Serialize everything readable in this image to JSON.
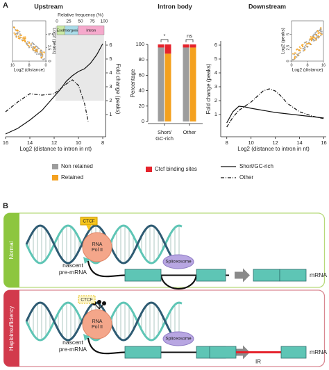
{
  "panel_labels": [
    "A",
    "B"
  ],
  "chart_data": [
    {
      "type": "line",
      "title": "Upstream",
      "x_label": "Log2 (distance to intron in nt)",
      "y_label": "Fold change (peaks)",
      "xlim": [
        16,
        7.75
      ],
      "xticks": [
        16,
        14,
        12,
        10,
        8
      ],
      "ylim": [
        -0.6,
        6.3
      ],
      "yticks": [
        1,
        2,
        3,
        4,
        5,
        6
      ],
      "y_axis_side": "right",
      "highlight_x": [
        11.9,
        7.9
      ],
      "frequency_bar": {
        "title": "Relative frequency (%)",
        "xlim": [
          0,
          100
        ],
        "xticks": [
          0,
          25,
          50,
          75,
          100
        ],
        "segments": [
          {
            "name": "Exon",
            "color": "#c9e8a4",
            "value": 17
          },
          {
            "name": "Intergenic",
            "color": "#a9dbe8",
            "value": 28
          },
          {
            "name": "Intron",
            "color": "#f5a9cc",
            "value": 55
          }
        ]
      },
      "inset": {
        "x_label": "Log2 (distance)",
        "y_label": "Log2 (peaks)",
        "xlim": [
          16,
          0
        ],
        "xticks": [
          16,
          8,
          0
        ],
        "ylim": [
          0,
          7.5
        ],
        "yticks": [
          0,
          2.5,
          5
        ],
        "y_axis_side": "right"
      },
      "series": [
        {
          "name": "Short/GC-rich",
          "style": "solid",
          "x": [
            16,
            15,
            14,
            13,
            12.5,
            12,
            11.5,
            11,
            10.5,
            10,
            9.5,
            9,
            8.5,
            8
          ],
          "values": [
            -0.4,
            0.0,
            0.6,
            1.3,
            1.8,
            2.3,
            2.8,
            3.4,
            3.8,
            4.1,
            4.3,
            4.7,
            5.3,
            6.1
          ]
        },
        {
          "name": "Other",
          "style": "dashdot",
          "x": [
            16,
            15,
            14,
            13,
            12,
            11,
            10.5,
            10,
            9.5,
            9.2
          ],
          "values": [
            1.2,
            1.9,
            2.5,
            2.4,
            2.5,
            3.2,
            3.5,
            3.1,
            1.8,
            0.5
          ]
        }
      ]
    },
    {
      "type": "bar",
      "title": "Intron body",
      "y_label": "Percentage",
      "categories": [
        "Short/\nGC-rich",
        "Other"
      ],
      "ylim": [
        0,
        100
      ],
      "yticks": [
        0,
        20,
        40,
        60,
        80,
        100
      ],
      "significance": [
        "*",
        "ns"
      ],
      "ctcf_name": "Ctcf binding sites",
      "ctcf_color": "#e5232c",
      "series": [
        {
          "name": "Non retained",
          "color": "#9d9d9d",
          "values": [
            96,
            96
          ],
          "ctcf": [
            4,
            4
          ]
        },
        {
          "name": "Retained",
          "color": "#f4a11f",
          "values": [
            88,
            96
          ],
          "ctcf": [
            12,
            4
          ]
        }
      ]
    },
    {
      "type": "line",
      "title": "Downstream",
      "x_label": "Log2 (distance to intron in nt)",
      "y_label": "Fold change (peaks)",
      "xlim": [
        7.5,
        16.2
      ],
      "xticks": [
        8,
        10,
        12,
        14,
        16
      ],
      "ylim": [
        -0.6,
        6.3
      ],
      "yticks": [
        1,
        2,
        3,
        4,
        5,
        6
      ],
      "y_axis_side": "left",
      "inset": {
        "x_label": "Log2 (distance)",
        "y_label": "Log2 (peaks)",
        "xlim": [
          0,
          16
        ],
        "xticks": [
          0,
          8,
          16
        ],
        "ylim": [
          0,
          7.5
        ],
        "yticks": [
          0,
          2.5,
          5
        ],
        "y_axis_side": "left"
      },
      "series": [
        {
          "style": "solid",
          "x": [
            8,
            8.5,
            9,
            9.5,
            10,
            11,
            12,
            13,
            14,
            15,
            16
          ],
          "values": [
            0.4,
            1.2,
            1.6,
            1.55,
            1.45,
            1.3,
            1.15,
            1.05,
            0.95,
            0.85,
            0.75
          ]
        },
        {
          "style": "dashdot",
          "x": [
            8,
            8.5,
            9,
            9.5,
            10,
            10.5,
            11,
            11.5,
            12,
            12.5,
            13,
            14,
            15,
            16
          ],
          "values": [
            0.1,
            0.8,
            1.3,
            1.6,
            1.9,
            2.3,
            2.7,
            2.85,
            2.7,
            2.3,
            1.8,
            1.2,
            0.9,
            0.7
          ]
        }
      ]
    }
  ],
  "panel_b": {
    "rows": [
      {
        "condition": "Normal",
        "strip_color": "#8dc63f",
        "border_color": "#b7d97a",
        "ctcf": "CTCF",
        "pol": "RNA\nPol II",
        "transcript": "nascent\npre-mRNA",
        "spliceosome": "Spliceosome",
        "product": "mRNA"
      },
      {
        "condition": "Haploinsufficiency",
        "strip_color": "#d23a4c",
        "border_color": "#d98892",
        "ctcf": "CTCF",
        "pol": "RNA\nPol II",
        "transcript": "nascent\npre-mRNA",
        "spliceosome": "Spliceosome",
        "product": "mRNA",
        "retained": "IR"
      }
    ]
  }
}
